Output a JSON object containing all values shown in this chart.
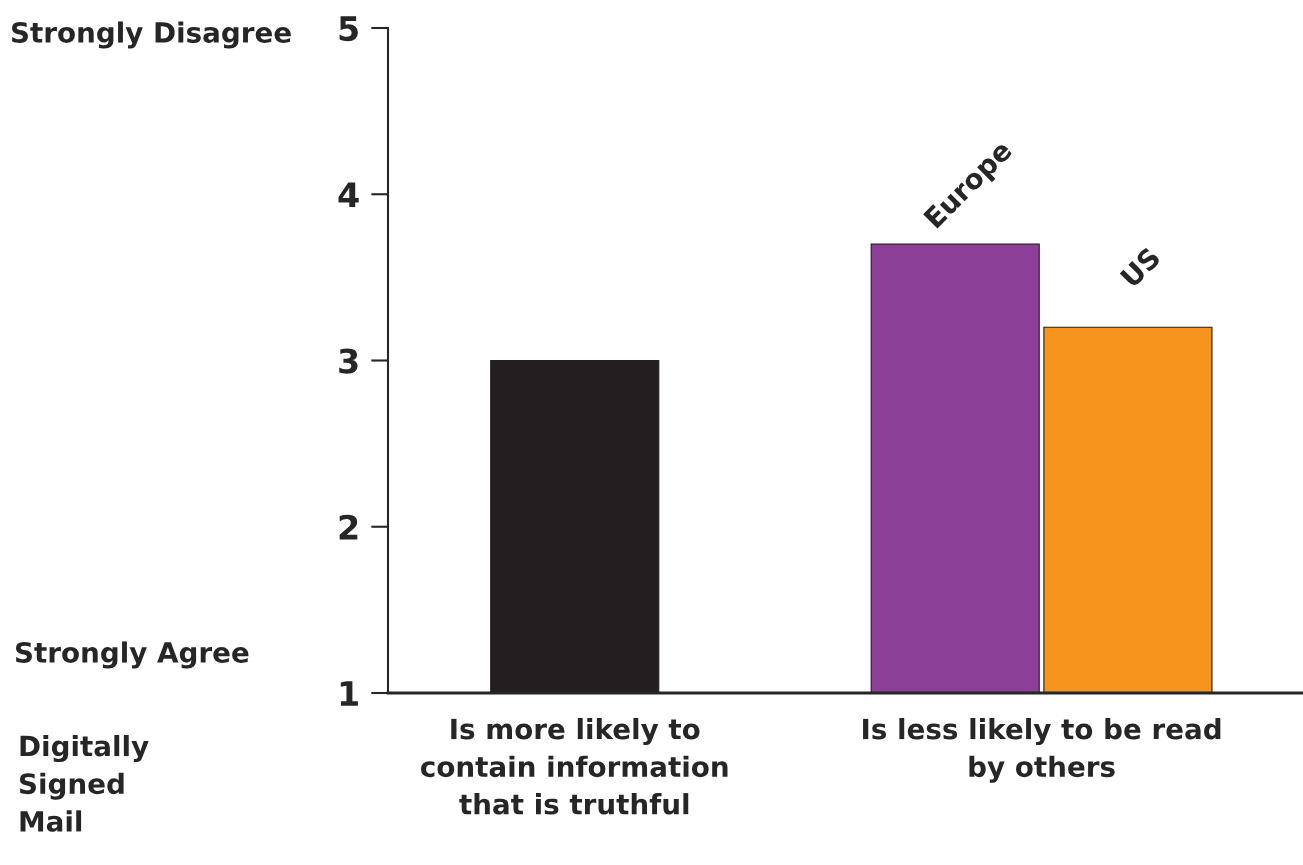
{
  "chart_data": {
    "type": "bar",
    "categories": [
      "Is more likely to\ncontain information\nthat is truthful",
      "Is less likely to be read\nby others"
    ],
    "series": [
      {
        "color": "#231f20",
        "values": [
          3.0,
          null
        ]
      },
      {
        "name": "Europe",
        "color": "#8b3f97",
        "values": [
          null,
          3.7
        ]
      },
      {
        "name": "US",
        "color": "#f7941d",
        "values": [
          null,
          3.2
        ]
      }
    ],
    "ylim": [
      1,
      5
    ],
    "yticks": [
      1,
      2,
      3,
      4,
      5
    ],
    "grid": false,
    "legend": false,
    "annotations": [
      "Strongly Disagree",
      "Strongly Agree",
      "Digitally\nSigned\nMail"
    ]
  }
}
